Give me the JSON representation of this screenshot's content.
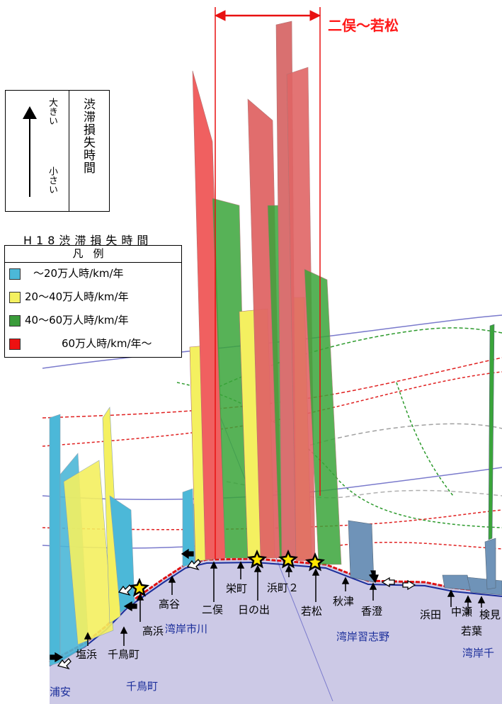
{
  "range_label": "二俣～若松",
  "indicator": {
    "big": "大きい",
    "small": "小さい",
    "title": "渋滞損失時間"
  },
  "legend": {
    "title": "H18渋滞損失時間",
    "header": "凡例",
    "items": [
      {
        "label": "～20万人時/km/年",
        "color": "#4cb8d8"
      },
      {
        "label": "20～40万人時/km/年",
        "color": "#f4f060"
      },
      {
        "label": "40～60万人時/km/年",
        "color": "#3a9c3a"
      },
      {
        "label": "60万人時/km/年～",
        "color": "#ee1111"
      }
    ]
  },
  "locations": {
    "takaya": "高谷",
    "futamata": "二俣",
    "sakaecho": "栄町",
    "hinode": "日の出",
    "hamacho2": "浜町２",
    "wakamatsu": "若松",
    "akitsu": "秋津",
    "kosumi": "香澄",
    "hamada": "浜田",
    "nakase": "中瀬",
    "kemi": "検見",
    "wakaba": "若葉",
    "takahama": "高浜",
    "shiohama": "塩浜",
    "chidoricho": "千鳥町"
  },
  "districts": {
    "wangan_ichikawa": "湾岸市川",
    "wangan_narashino": "湾岸習志野",
    "wangan_chiba": "湾岸千",
    "urayasu": "浦安",
    "chidoricho": "千鳥町"
  }
}
